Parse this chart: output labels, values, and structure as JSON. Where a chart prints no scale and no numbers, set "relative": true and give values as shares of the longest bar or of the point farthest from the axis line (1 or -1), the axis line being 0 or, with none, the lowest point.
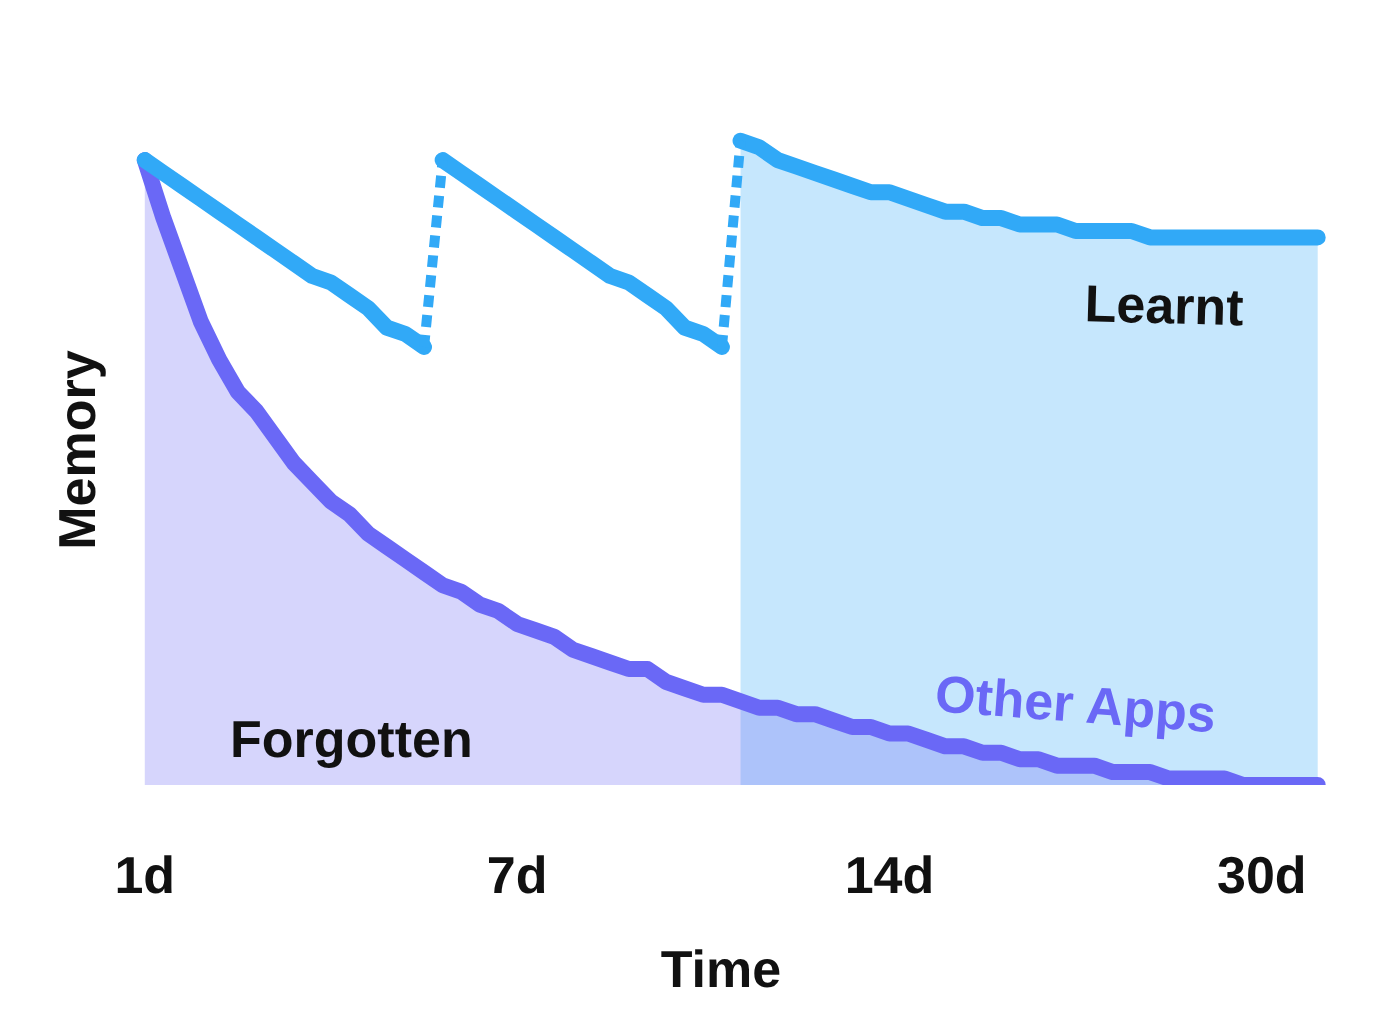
{
  "chart_data": {
    "type": "line",
    "relative": true,
    "xlabel": "Time",
    "ylabel": "Memory",
    "categories": [
      "1d",
      null,
      null,
      null,
      null,
      null,
      null,
      null,
      null,
      null,
      null,
      null,
      null,
      null,
      null,
      null,
      null,
      null,
      null,
      null,
      "7d",
      null,
      null,
      null,
      null,
      null,
      null,
      null,
      null,
      null,
      null,
      null,
      null,
      null,
      null,
      null,
      null,
      null,
      null,
      null,
      "14d",
      null,
      null,
      null,
      null,
      null,
      null,
      null,
      null,
      null,
      null,
      null,
      null,
      null,
      null,
      null,
      null,
      null,
      null,
      null,
      "30d",
      null,
      null,
      null
    ],
    "annotations": [
      "Forgotten"
    ],
    "series": [
      {
        "type": "area",
        "name": "Learnt",
        "color": "#31a9f7",
        "values": [
          null,
          null,
          null,
          null,
          null,
          null,
          null,
          null,
          null,
          null,
          null,
          null,
          null,
          null,
          null,
          null,
          null,
          null,
          null,
          null,
          null,
          null,
          null,
          null,
          null,
          null,
          null,
          null,
          null,
          null,
          null,
          null,
          1.0,
          0.99,
          0.97,
          0.96,
          0.95,
          0.94,
          0.93,
          0.92,
          0.92,
          0.91,
          0.9,
          0.89,
          0.89,
          0.88,
          0.88,
          0.87,
          0.87,
          0.87,
          0.86,
          0.86,
          0.86,
          0.86,
          0.85,
          0.85,
          0.85,
          0.85,
          0.85,
          0.85,
          0.85,
          0.85,
          0.85,
          0.85
        ]
      },
      {
        "type": "area",
        "name": "Other Apps",
        "color": "#6a68f6",
        "values": [
          0.97,
          0.88,
          0.8,
          0.72,
          0.66,
          0.61,
          0.58,
          0.54,
          0.5,
          0.47,
          0.44,
          0.42,
          0.39,
          0.37,
          0.35,
          0.33,
          0.31,
          0.3,
          0.28,
          0.27,
          0.25,
          0.24,
          0.23,
          0.21,
          0.2,
          0.19,
          0.18,
          0.18,
          0.16,
          0.15,
          0.14,
          0.14,
          0.13,
          0.12,
          0.12,
          0.11,
          0.11,
          0.1,
          0.09,
          0.09,
          0.08,
          0.08,
          0.07,
          0.06,
          0.06,
          0.05,
          0.05,
          0.04,
          0.04,
          0.03,
          0.03,
          0.03,
          0.02,
          0.02,
          0.02,
          0.01,
          0.01,
          0.01,
          0.01,
          0.0,
          0.0,
          0.0,
          0.0,
          0.0
        ]
      },
      {
        "color": "#31a9f7",
        "values": [
          0.97,
          0.95,
          0.93,
          0.91,
          0.89,
          0.87,
          0.85,
          0.83,
          0.81,
          0.79,
          0.78,
          0.76,
          0.74,
          0.71,
          0.7,
          0.68,
          null,
          null,
          null,
          null,
          null,
          null,
          null,
          null,
          null,
          null,
          null,
          null,
          null,
          null,
          null,
          null,
          null,
          null,
          null,
          null,
          null,
          null,
          null,
          null,
          null,
          null,
          null,
          null,
          null,
          null,
          null,
          null,
          null,
          null,
          null,
          null,
          null,
          null,
          null,
          null,
          null,
          null,
          null,
          null,
          null,
          null,
          null,
          null
        ]
      },
      {
        "color": "#31a9f7",
        "values": [
          null,
          null,
          null,
          null,
          null,
          null,
          null,
          null,
          null,
          null,
          null,
          null,
          null,
          null,
          null,
          null,
          0.97,
          0.95,
          0.93,
          0.91,
          0.89,
          0.87,
          0.85,
          0.83,
          0.81,
          0.79,
          0.78,
          0.76,
          0.74,
          0.71,
          0.7,
          0.68,
          null,
          null,
          null,
          null,
          null,
          null,
          null,
          null,
          null,
          null,
          null,
          null,
          null,
          null,
          null,
          null,
          null,
          null,
          null,
          null,
          null,
          null,
          null,
          null,
          null,
          null,
          null,
          null,
          null,
          null,
          null,
          null
        ]
      },
      {
        "color": "#31a9f7",
        "line_style": "dotted",
        "values": [
          null,
          null,
          null,
          null,
          null,
          null,
          null,
          null,
          null,
          null,
          null,
          null,
          null,
          null,
          null,
          0.68,
          0.97,
          null,
          null,
          null,
          null,
          null,
          null,
          null,
          null,
          null,
          null,
          null,
          null,
          null,
          null,
          0.68,
          1.0,
          null,
          null,
          null,
          null,
          null,
          null,
          null,
          null,
          null,
          null,
          null,
          null,
          null,
          null,
          null,
          null,
          null,
          null,
          null,
          null,
          null,
          null,
          null,
          null,
          null,
          null,
          null,
          null,
          null,
          null,
          null
        ]
      }
    ]
  }
}
